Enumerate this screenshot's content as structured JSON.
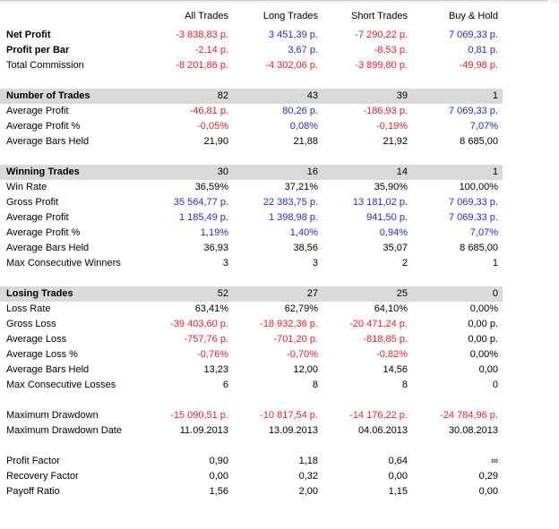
{
  "headers": [
    "All Trades",
    "Long Trades",
    "Short Trades",
    "Buy & Hold"
  ],
  "colors": {
    "negative": "#e8202a",
    "positive": "#1f2bd8",
    "neutral": "#000000",
    "section_bg": "#d9d9d9"
  },
  "rows": [
    {
      "label": "Net Profit",
      "bold": true,
      "values": [
        "-3 838,83 p.",
        "3 451,39 p.",
        "-7 290,22 p.",
        "7 069,33 p."
      ],
      "colors": [
        "red",
        "blue",
        "red",
        "blue"
      ]
    },
    {
      "label": "Profit per Bar",
      "bold": true,
      "values": [
        "-2,14 p.",
        "3,67 p.",
        "-8,53 p.",
        "0,81 p."
      ],
      "colors": [
        "red",
        "blue",
        "red",
        "blue"
      ]
    },
    {
      "label": "Total Commission",
      "values": [
        "-8 201,86 p.",
        "-4 302,06 p.",
        "-3 899,80 p.",
        "-49,98 p."
      ],
      "colors": [
        "red",
        "red",
        "red",
        "red"
      ]
    },
    {
      "label": "Number of Trades",
      "section": true,
      "values": [
        "82",
        "43",
        "39",
        "1"
      ],
      "colors": [
        "black",
        "black",
        "black",
        "black"
      ]
    },
    {
      "label": "Average Profit",
      "values": [
        "-46,81 p.",
        "80,26 p.",
        "-186,93 p.",
        "7 069,33 p."
      ],
      "colors": [
        "red",
        "blue",
        "red",
        "blue"
      ]
    },
    {
      "label": "Average Profit %",
      "values": [
        "-0,05%",
        "0,08%",
        "-0,19%",
        "7,07%"
      ],
      "colors": [
        "red",
        "blue",
        "red",
        "blue"
      ]
    },
    {
      "label": "Average Bars Held",
      "values": [
        "21,90",
        "21,88",
        "21,92",
        "8 685,00"
      ],
      "colors": [
        "black",
        "black",
        "black",
        "black"
      ]
    },
    {
      "label": "Winning Trades",
      "section": true,
      "values": [
        "30",
        "16",
        "14",
        "1"
      ],
      "colors": [
        "black",
        "black",
        "black",
        "black"
      ]
    },
    {
      "label": "Win Rate",
      "values": [
        "36,59%",
        "37,21%",
        "35,90%",
        "100,00%"
      ],
      "colors": [
        "black",
        "black",
        "black",
        "black"
      ]
    },
    {
      "label": "Gross Profit",
      "values": [
        "35 564,77 p.",
        "22 383,75 p.",
        "13 181,02 p.",
        "7 069,33 p."
      ],
      "colors": [
        "blue",
        "blue",
        "blue",
        "blue"
      ]
    },
    {
      "label": "Average Profit",
      "values": [
        "1 185,49 p.",
        "1 398,98 p.",
        "941,50 p.",
        "7 069,33 p."
      ],
      "colors": [
        "blue",
        "blue",
        "blue",
        "blue"
      ]
    },
    {
      "label": "Average Profit %",
      "values": [
        "1,19%",
        "1,40%",
        "0,94%",
        "7,07%"
      ],
      "colors": [
        "blue",
        "blue",
        "blue",
        "blue"
      ]
    },
    {
      "label": "Average Bars Held",
      "values": [
        "36,93",
        "38,56",
        "35,07",
        "8 685,00"
      ],
      "colors": [
        "black",
        "black",
        "black",
        "black"
      ]
    },
    {
      "label": "Max Consecutive Winners",
      "values": [
        "3",
        "3",
        "2",
        "1"
      ],
      "colors": [
        "black",
        "black",
        "black",
        "black"
      ]
    },
    {
      "label": "Losing Trades",
      "section": true,
      "values": [
        "52",
        "27",
        "25",
        "0"
      ],
      "colors": [
        "black",
        "black",
        "black",
        "black"
      ]
    },
    {
      "label": "Loss Rate",
      "values": [
        "63,41%",
        "62,79%",
        "64,10%",
        "0,00%"
      ],
      "colors": [
        "black",
        "black",
        "black",
        "black"
      ]
    },
    {
      "label": "Gross Loss",
      "values": [
        "-39 403,60 p.",
        "-18 932,36 p.",
        "-20 471,24 p.",
        "0,00 p."
      ],
      "colors": [
        "red",
        "red",
        "red",
        "black"
      ]
    },
    {
      "label": "Average Loss",
      "values": [
        "-757,76 p.",
        "-701,20 p.",
        "-818,85 p.",
        "0,00 p."
      ],
      "colors": [
        "red",
        "red",
        "red",
        "black"
      ]
    },
    {
      "label": "Average Loss %",
      "values": [
        "-0,76%",
        "-0,70%",
        "-0,82%",
        "0,00%"
      ],
      "colors": [
        "red",
        "red",
        "red",
        "black"
      ]
    },
    {
      "label": "Average Bars Held",
      "values": [
        "13,23",
        "12,00",
        "14,56",
        "0,00"
      ],
      "colors": [
        "black",
        "black",
        "black",
        "black"
      ]
    },
    {
      "label": "Max Consecutive Losses",
      "values": [
        "6",
        "8",
        "8",
        "0"
      ],
      "colors": [
        "black",
        "black",
        "black",
        "black"
      ]
    },
    {
      "label": "Maximum Drawdown",
      "values": [
        "-15 090,51 p.",
        "-10 817,54 p.",
        "-14 176,22 p.",
        "-24 784,96 p."
      ],
      "colors": [
        "red",
        "red",
        "red",
        "red"
      ]
    },
    {
      "label": "Maximum Drawdown Date",
      "values": [
        "11.09.2013",
        "13.09.2013",
        "04.06.2013",
        "30.08.2013"
      ],
      "colors": [
        "black",
        "black",
        "black",
        "black"
      ]
    },
    {
      "label": "Profit Factor",
      "values": [
        "0,90",
        "1,18",
        "0,64",
        "∞"
      ],
      "colors": [
        "black",
        "black",
        "black",
        "black"
      ]
    },
    {
      "label": "Recovery Factor",
      "values": [
        "0,00",
        "0,32",
        "0,00",
        "0,29"
      ],
      "colors": [
        "black",
        "black",
        "black",
        "black"
      ]
    },
    {
      "label": "Payoff Ratio",
      "values": [
        "1,56",
        "2,00",
        "1,15",
        "0,00"
      ],
      "colors": [
        "black",
        "black",
        "black",
        "black"
      ]
    }
  ]
}
